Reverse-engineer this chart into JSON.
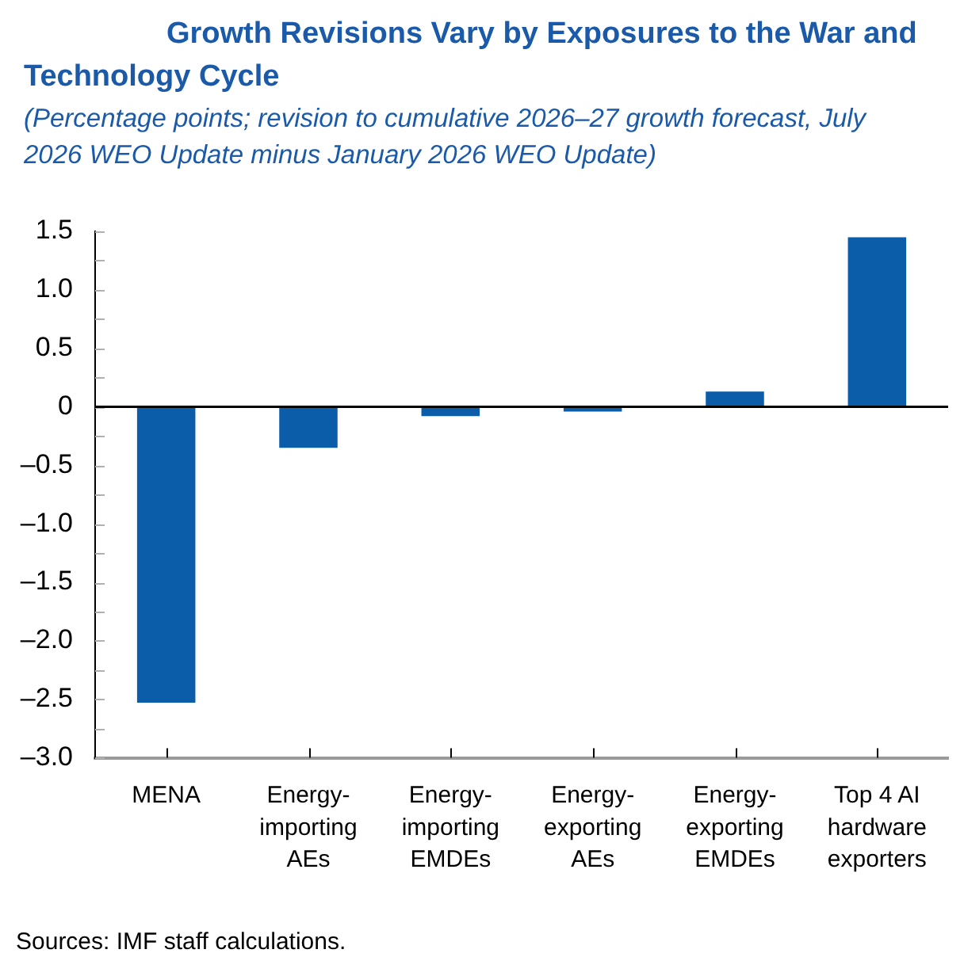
{
  "chart_data": {
    "type": "bar",
    "title": "Growth Revisions Vary by Exposures to the War and Technology Cycle",
    "subtitle": "(Percentage points; revision to cumulative 2026–27 growth forecast, July 2026 WEO Update minus January 2026 WEO Update)",
    "categories": [
      "MENA",
      "Energy-importing AEs",
      "Energy-importing EMDEs",
      "Energy-exporting AEs",
      "Energy-exporting EMDEs",
      "Top 4 AI hardware exporters"
    ],
    "values": [
      -2.53,
      -0.35,
      -0.08,
      -0.04,
      0.13,
      1.45
    ],
    "color": "#0b5ca9",
    "ylim": [
      -3,
      1.5
    ],
    "yticks": [
      {
        "value": -3,
        "label": "–3.0"
      },
      {
        "value": -2.75,
        "label": null
      },
      {
        "value": -2.5,
        "label": "–2.5"
      },
      {
        "value": -2.25,
        "label": null
      },
      {
        "value": -2,
        "label": "–2.0"
      },
      {
        "value": -1.75,
        "label": null
      },
      {
        "value": -1.5,
        "label": "–1.5"
      },
      {
        "value": -1.25,
        "label": null
      },
      {
        "value": -1,
        "label": "–1.0"
      },
      {
        "value": -0.75,
        "label": null
      },
      {
        "value": -0.5,
        "label": "–0.5"
      },
      {
        "value": -0.25,
        "label": null
      },
      0,
      {
        "value": 0.25,
        "label": null
      },
      0.5,
      {
        "value": 0.75,
        "label": null
      },
      {
        "value": 1,
        "label": "1.0"
      },
      {
        "value": 1.25,
        "label": null
      },
      1.5
    ],
    "annotations": [
      "Sources: IMF staff calculations."
    ]
  }
}
